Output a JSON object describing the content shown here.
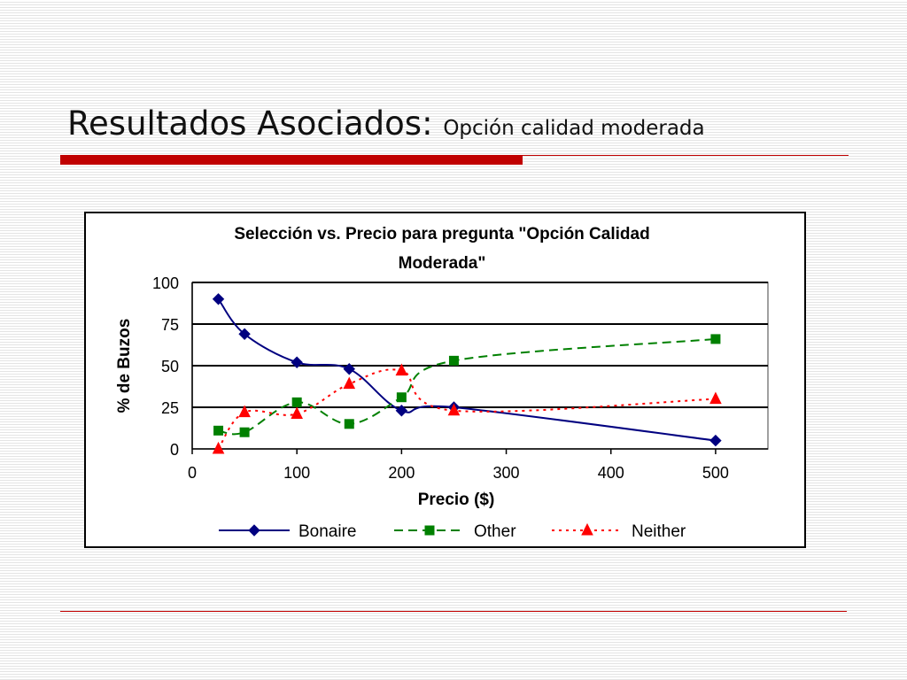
{
  "slide": {
    "title": "Resultados Asociados:",
    "subtitle": "Opción calidad moderada",
    "accent_color": "#c00000"
  },
  "chart_data": {
    "type": "line",
    "title_lines": [
      "Selección vs. Precio para pregunta \"Opción Calidad",
      "Moderada\""
    ],
    "xlabel": "Precio ($)",
    "ylabel": "% de Buzos",
    "xlim": [
      0,
      550
    ],
    "ylim": [
      0,
      100
    ],
    "x_ticks": [
      0,
      100,
      200,
      300,
      400,
      500
    ],
    "y_ticks": [
      0,
      25,
      50,
      75,
      100
    ],
    "grid": "horizontal",
    "legend_position": "bottom",
    "x": [
      25,
      50,
      100,
      150,
      200,
      250,
      500
    ],
    "series": [
      {
        "name": "Bonaire",
        "values": [
          90,
          69,
          52,
          48,
          23,
          25,
          5
        ],
        "color": "#000080",
        "marker": "diamond",
        "line_style": "solid"
      },
      {
        "name": "Other",
        "values": [
          11,
          10,
          28,
          15,
          31,
          53,
          66
        ],
        "color": "#008000",
        "marker": "square",
        "line_style": "dashed"
      },
      {
        "name": "Neither",
        "values": [
          0,
          22,
          21,
          39,
          47,
          23,
          30
        ],
        "color": "#ff0000",
        "marker": "triangle",
        "line_style": "dotted"
      }
    ]
  }
}
